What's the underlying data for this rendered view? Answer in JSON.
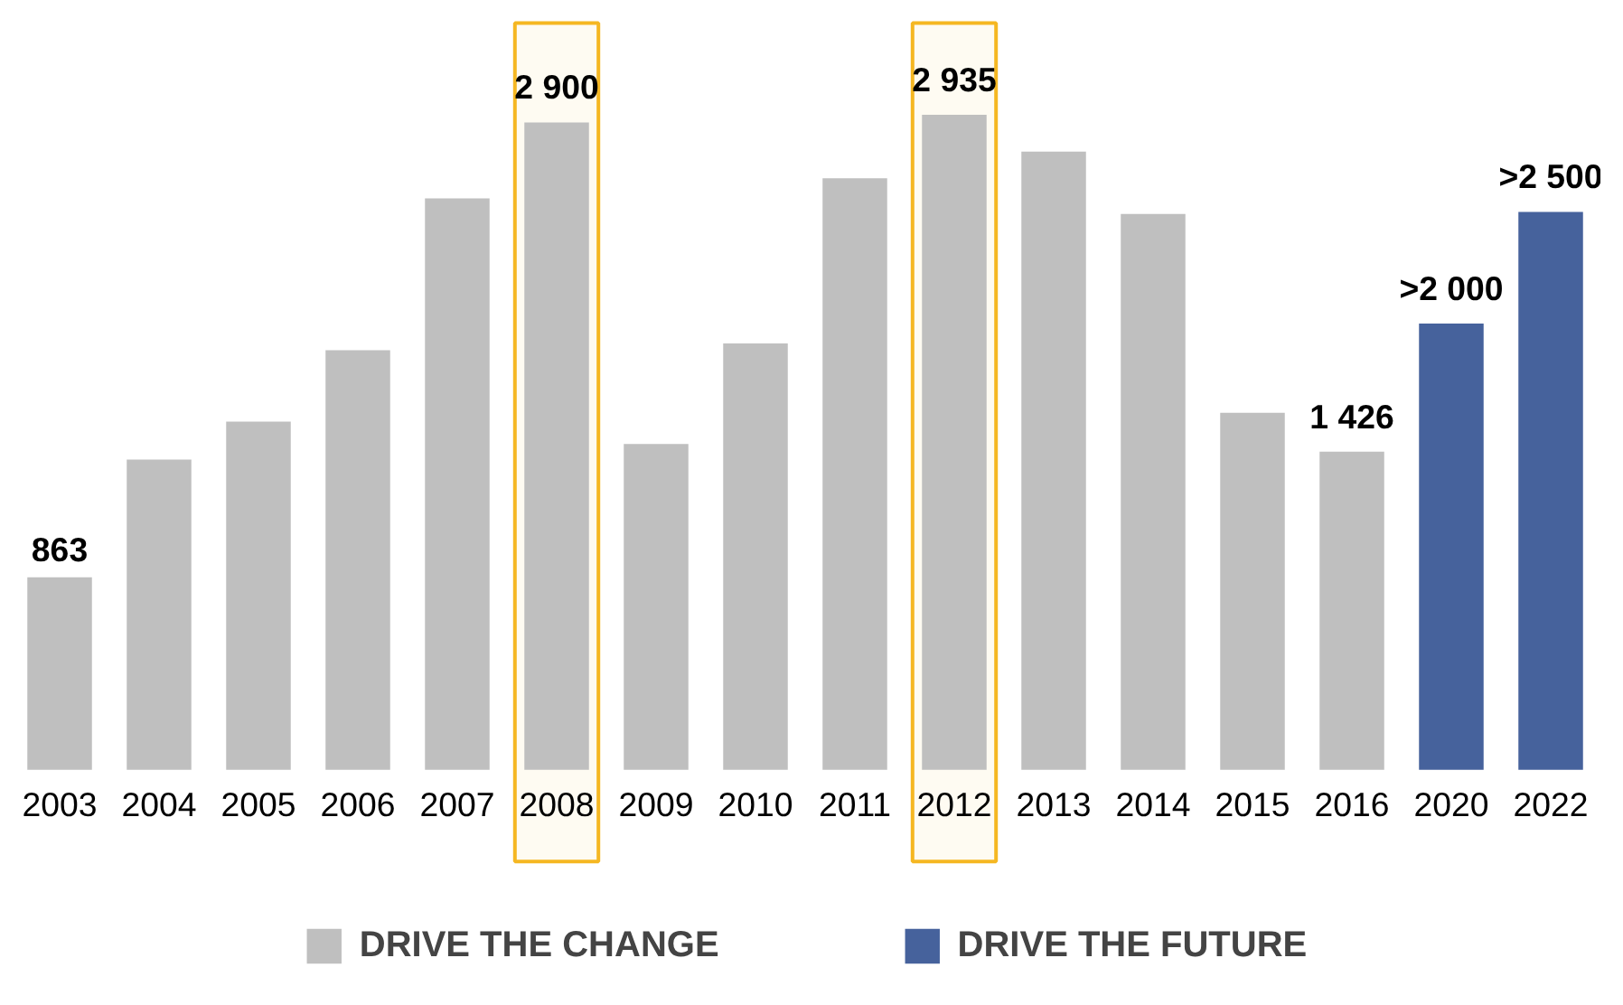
{
  "chart_data": {
    "type": "bar",
    "categories": [
      "2003",
      "2004",
      "2005",
      "2006",
      "2007",
      "2008",
      "2009",
      "2010",
      "2011",
      "2012",
      "2013",
      "2014",
      "2015",
      "2016",
      "2020",
      "2022"
    ],
    "series": [
      {
        "name": "DRIVE THE CHANGE",
        "color": "#bfbfbf",
        "values": [
          863,
          1390,
          1560,
          1880,
          2560,
          2900,
          1460,
          1910,
          2650,
          2935,
          2770,
          2490,
          1600,
          1426,
          null,
          null
        ],
        "value_labels": [
          "863",
          null,
          null,
          null,
          null,
          "2 900",
          null,
          null,
          null,
          "2 935",
          null,
          null,
          null,
          "1 426",
          null,
          null
        ]
      },
      {
        "name": "DRIVE THE FUTURE",
        "color": "#46629c",
        "values": [
          null,
          null,
          null,
          null,
          null,
          null,
          null,
          null,
          null,
          null,
          null,
          null,
          null,
          null,
          2000,
          2500
        ],
        "value_labels": [
          null,
          null,
          null,
          null,
          null,
          null,
          null,
          null,
          null,
          null,
          null,
          null,
          null,
          null,
          ">2 000",
          ">2 500"
        ]
      }
    ],
    "bands": [
      {
        "axis": "x",
        "from": "2008",
        "to": "2008",
        "color": "#f5b722"
      },
      {
        "axis": "x",
        "from": "2012",
        "to": "2012",
        "color": "#f5b722"
      }
    ],
    "legend": "bottom",
    "grid": false
  }
}
